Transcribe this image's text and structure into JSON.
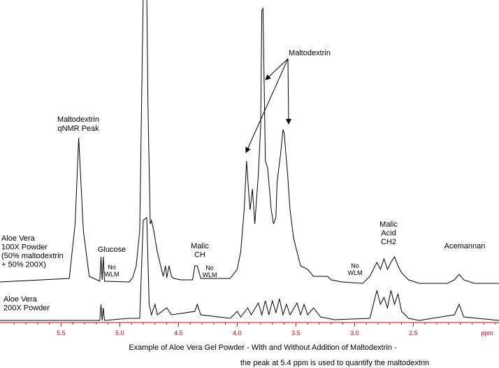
{
  "chart_data": {
    "type": "line",
    "xlim": [
      6.02,
      1.77
    ],
    "ylim": [
      0,
      405
    ],
    "xlabel": "ppm",
    "axis_color": "#dd0000",
    "xticks": [
      {
        "value": 5.5,
        "label": "5.5"
      },
      {
        "value": 5,
        "label": "5.0"
      },
      {
        "value": 4.5,
        "label": "4.5"
      },
      {
        "value": 4,
        "label": "4.0"
      },
      {
        "value": 3.5,
        "label": "3.5"
      },
      {
        "value": 3,
        "label": "3.0"
      },
      {
        "value": 2.5,
        "label": "2.5"
      }
    ],
    "xminorticks": [
      5.9,
      5.8,
      5.7,
      5.6,
      5.4,
      5.3,
      5.2,
      5.1,
      4.9,
      4.8,
      4.7,
      4.6,
      4.4,
      4.3,
      4.2,
      4.1,
      3.9,
      3.8,
      3.7,
      3.6,
      3.4,
      3.3,
      3.2,
      3.1,
      2.9,
      2.8,
      2.7,
      2.6,
      2.4,
      2.3,
      2.2,
      2.1,
      2.0,
      1.9,
      1.8
    ],
    "series": [
      {
        "name": [
          "Aloe Vera",
          "100X Powder",
          "(50% maltodextrin",
          "+ 50% 200X)"
        ],
        "color": "#000000",
        "x": [
          6.02,
          5.43,
          5.38,
          5.35,
          5.31,
          5.26,
          5.17,
          5.16,
          5.15,
          5.14,
          5.13,
          4.92,
          4.89,
          4.86,
          4.83,
          4.81,
          4.8,
          4.77,
          4.76,
          4.74,
          4.73,
          4.71,
          4.68,
          4.63,
          4.61,
          4.6,
          4.58,
          4.56,
          4.54,
          4.48,
          4.38,
          4.36,
          4.34,
          4.31,
          4.24,
          4.06,
          4.0,
          3.97,
          3.94,
          3.92,
          3.9,
          3.89,
          3.87,
          3.85,
          3.82,
          3.8,
          3.79,
          3.78,
          3.76,
          3.74,
          3.71,
          3.69,
          3.67,
          3.66,
          3.63,
          3.61,
          3.6,
          3.57,
          3.55,
          3.52,
          3.49,
          3.46,
          3.4,
          3.35,
          3.29,
          3.23,
          3.2,
          3.11,
          2.93,
          2.87,
          2.81,
          2.78,
          2.75,
          2.72,
          2.69,
          2.66,
          2.63,
          2.6,
          2.54,
          2.45,
          2.21,
          2.15,
          2.11,
          2.07,
          1.98,
          1.77
        ],
        "values": [
          2,
          7,
          85,
          208,
          75,
          10,
          3,
          38,
          5,
          38,
          3,
          2,
          8,
          25,
          75,
          305,
          415,
          415,
          255,
          85,
          90,
          75,
          45,
          10,
          25,
          8,
          25,
          10,
          7,
          5,
          5,
          25,
          25,
          7,
          7,
          7,
          20,
          45,
          105,
          175,
          125,
          105,
          135,
          85,
          155,
          225,
          390,
          393,
          175,
          165,
          105,
          85,
          95,
          145,
          185,
          220,
          215,
          155,
          105,
          65,
          45,
          25,
          20,
          10,
          10,
          10,
          5,
          2,
          0,
          10,
          30,
          20,
          35,
          20,
          30,
          38,
          25,
          15,
          5,
          0,
          0,
          5,
          13,
          5,
          0,
          0
        ]
      },
      {
        "name": [
          "Aloe Vera",
          "200X Powder"
        ],
        "color": "#000000",
        "x": [
          6.02,
          5.17,
          5.16,
          5.15,
          5.14,
          5.13,
          4.92,
          4.83,
          4.8,
          4.77,
          4.75,
          4.73,
          4.7,
          4.68,
          4.6,
          4.56,
          4.36,
          4.34,
          4.31,
          4.06,
          4.0,
          3.97,
          3.91,
          3.88,
          3.82,
          3.79,
          3.76,
          3.73,
          3.7,
          3.67,
          3.64,
          3.61,
          3.58,
          3.55,
          3.49,
          3.46,
          3.43,
          3.4,
          3.35,
          3.29,
          3.17,
          2.87,
          2.81,
          2.78,
          2.75,
          2.72,
          2.69,
          2.66,
          2.63,
          2.6,
          2.54,
          2.45,
          2.15,
          2.11,
          2.07,
          1.77
        ],
        "values": [
          0,
          0,
          23,
          0,
          18,
          0,
          3,
          3,
          143,
          147,
          23,
          8,
          23,
          8,
          18,
          8,
          13,
          23,
          8,
          3,
          13,
          5,
          18,
          8,
          25,
          8,
          28,
          8,
          28,
          11,
          31,
          8,
          23,
          8,
          25,
          8,
          23,
          8,
          18,
          5,
          1,
          3,
          43,
          23,
          33,
          18,
          43,
          23,
          38,
          13,
          3,
          0,
          8,
          23,
          5,
          0
        ]
      }
    ],
    "annotations": [
      {
        "lines": [
          "Maltodextrin",
          "qNMR Peak"
        ]
      },
      {
        "lines": [
          "Glucose"
        ]
      },
      {
        "lines": [
          "No",
          "WLM"
        ]
      },
      {
        "lines": [
          "Malic",
          "CH"
        ]
      },
      {
        "lines": [
          "No",
          "WLM"
        ]
      },
      {
        "lines": [
          "Maltodextrin"
        ]
      },
      {
        "lines": [
          "No",
          "WLM"
        ]
      },
      {
        "lines": [
          "Malic",
          "Acid",
          "CH2"
        ]
      },
      {
        "lines": [
          "Acemannan"
        ]
      }
    ],
    "caption": [
      "Example of Aloe Vera Gel Powder - With and Without Addition of Maltodextrin -",
      "the peak at 5.4 ppm is used to quantify the maltodextrin"
    ]
  }
}
